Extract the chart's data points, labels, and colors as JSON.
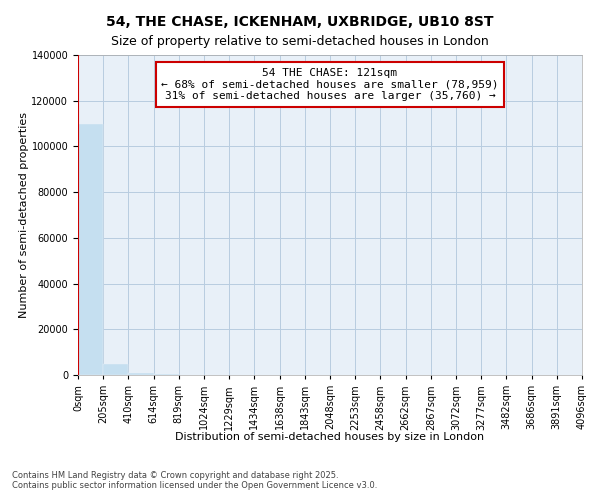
{
  "title": "54, THE CHASE, ICKENHAM, UXBRIDGE, UB10 8ST",
  "subtitle": "Size of property relative to semi-detached houses in London",
  "xlabel": "Distribution of semi-detached houses by size in London",
  "ylabel": "Number of semi-detached properties",
  "property_label": "54 THE CHASE: 121sqm",
  "pct_smaller": 68,
  "count_smaller": 78959,
  "pct_larger": 31,
  "count_larger": 35760,
  "bar_color": "#c5dff0",
  "marker_color": "#cc0000",
  "annotation_box_color": "#cc0000",
  "background_color": "#ffffff",
  "plot_bg_color": "#e8f0f8",
  "grid_color": "#b8cce0",
  "ylim": [
    0,
    140000
  ],
  "yticks": [
    0,
    20000,
    40000,
    60000,
    80000,
    100000,
    120000,
    140000
  ],
  "n_bins": 20,
  "bin_labels": [
    "0sqm",
    "205sqm",
    "410sqm",
    "614sqm",
    "819sqm",
    "1024sqm",
    "1229sqm",
    "1434sqm",
    "1638sqm",
    "1843sqm",
    "2048sqm",
    "2253sqm",
    "2458sqm",
    "2662sqm",
    "2867sqm",
    "3072sqm",
    "3277sqm",
    "3482sqm",
    "3686sqm",
    "3891sqm",
    "4096sqm"
  ],
  "bar_heights": [
    110000,
    5000,
    800,
    300,
    150,
    80,
    50,
    35,
    25,
    18,
    12,
    9,
    7,
    5,
    4,
    3,
    3,
    2,
    2,
    1
  ],
  "prop_bin": 0,
  "footer": "Contains HM Land Registry data © Crown copyright and database right 2025.\nContains public sector information licensed under the Open Government Licence v3.0.",
  "title_fontsize": 10,
  "subtitle_fontsize": 9,
  "tick_fontsize": 7,
  "ylabel_fontsize": 8,
  "xlabel_fontsize": 8,
  "annotation_fontsize": 8
}
